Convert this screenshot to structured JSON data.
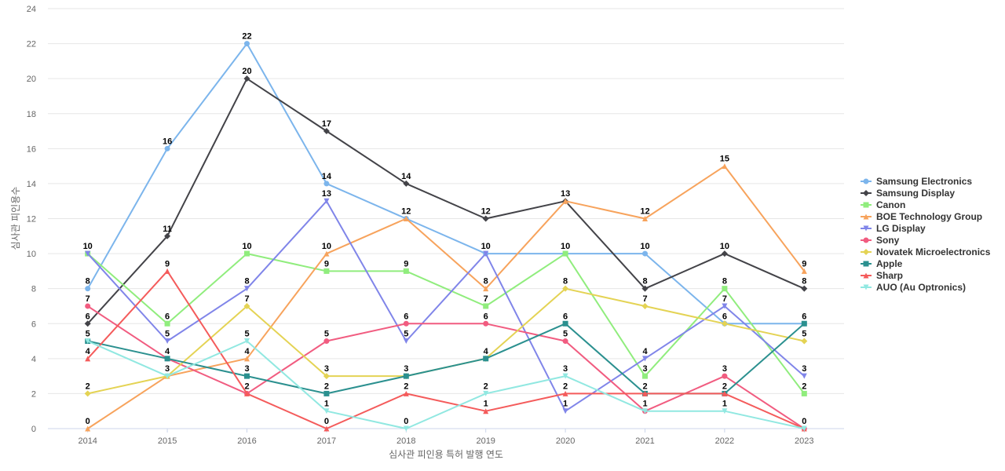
{
  "chart_data": {
    "type": "line",
    "title": "",
    "xlabel": "심사관 피인용 특허 발행 연도",
    "ylabel": "심사관 피인용수",
    "x": [
      "2014",
      "2015",
      "2016",
      "2017",
      "2018",
      "2019",
      "2020",
      "2021",
      "2022",
      "2023"
    ],
    "ylim": [
      0,
      24
    ],
    "yticks": [
      0,
      2,
      4,
      6,
      8,
      10,
      12,
      14,
      16,
      18,
      20,
      22,
      24
    ],
    "grid": true,
    "legend_position": "right",
    "series": [
      {
        "name": "Samsung Electronics",
        "color": "#7cb5ec",
        "marker": "circle",
        "values": [
          8,
          16,
          22,
          14,
          12,
          10,
          10,
          10,
          6,
          6
        ]
      },
      {
        "name": "Samsung Display",
        "color": "#434348",
        "marker": "diamond",
        "values": [
          6,
          11,
          20,
          17,
          14,
          12,
          13,
          8,
          10,
          8
        ]
      },
      {
        "name": "Canon",
        "color": "#90ed7d",
        "marker": "square",
        "values": [
          10,
          6,
          10,
          9,
          9,
          7,
          10,
          3,
          8,
          2
        ]
      },
      {
        "name": "BOE Technology Group",
        "color": "#f7a35c",
        "marker": "triangle",
        "values": [
          0,
          3,
          4,
          10,
          12,
          8,
          13,
          12,
          15,
          9
        ]
      },
      {
        "name": "LG Display",
        "color": "#8085e9",
        "marker": "triangle-down",
        "values": [
          10,
          5,
          8,
          13,
          5,
          10,
          1,
          4,
          7,
          3
        ]
      },
      {
        "name": "Sony",
        "color": "#f15c80",
        "marker": "circle",
        "values": [
          7,
          4,
          2,
          5,
          6,
          6,
          5,
          1,
          3,
          0
        ]
      },
      {
        "name": "Novatek Microelectronics",
        "color": "#e4d354",
        "marker": "diamond",
        "values": [
          2,
          3,
          7,
          3,
          3,
          4,
          8,
          7,
          6,
          5
        ]
      },
      {
        "name": "Apple",
        "color": "#2b908f",
        "marker": "square",
        "values": [
          5,
          4,
          3,
          2,
          3,
          4,
          6,
          2,
          2,
          6
        ]
      },
      {
        "name": "Sharp",
        "color": "#f45b5b",
        "marker": "triangle",
        "values": [
          4,
          9,
          2,
          0,
          2,
          1,
          2,
          2,
          2,
          0
        ]
      },
      {
        "name": "AUO (Au Optronics)",
        "color": "#91e8e1",
        "marker": "triangle-down",
        "values": [
          5,
          3,
          5,
          1,
          0,
          2,
          3,
          1,
          1,
          0
        ]
      }
    ],
    "data_labels": [
      {
        "x": "2014",
        "values": [
          10,
          8,
          7,
          6,
          5,
          4,
          2,
          0
        ]
      },
      {
        "x": "2015",
        "values": [
          16,
          11,
          9,
          6,
          5,
          4,
          3
        ]
      },
      {
        "x": "2016",
        "values": [
          22,
          20,
          10,
          8,
          7,
          5,
          4,
          3,
          2
        ]
      },
      {
        "x": "2017",
        "values": [
          17,
          14,
          13,
          10,
          9,
          5,
          3,
          2,
          1,
          0
        ]
      },
      {
        "x": "2018",
        "values": [
          14,
          12,
          9,
          6,
          5,
          3,
          2,
          0
        ]
      },
      {
        "x": "2019",
        "values": [
          12,
          10,
          8,
          7,
          6,
          4,
          2,
          1
        ]
      },
      {
        "x": "2020",
        "values": [
          13,
          10,
          8,
          6,
          5,
          3,
          2,
          1
        ]
      },
      {
        "x": "2021",
        "values": [
          12,
          10,
          8,
          7,
          4,
          3,
          2,
          1
        ]
      },
      {
        "x": "2022",
        "values": [
          15,
          10,
          8,
          7,
          6,
          3,
          2,
          1
        ]
      },
      {
        "x": "2023",
        "values": [
          9,
          8,
          6,
          5,
          3,
          2,
          0
        ]
      }
    ]
  }
}
